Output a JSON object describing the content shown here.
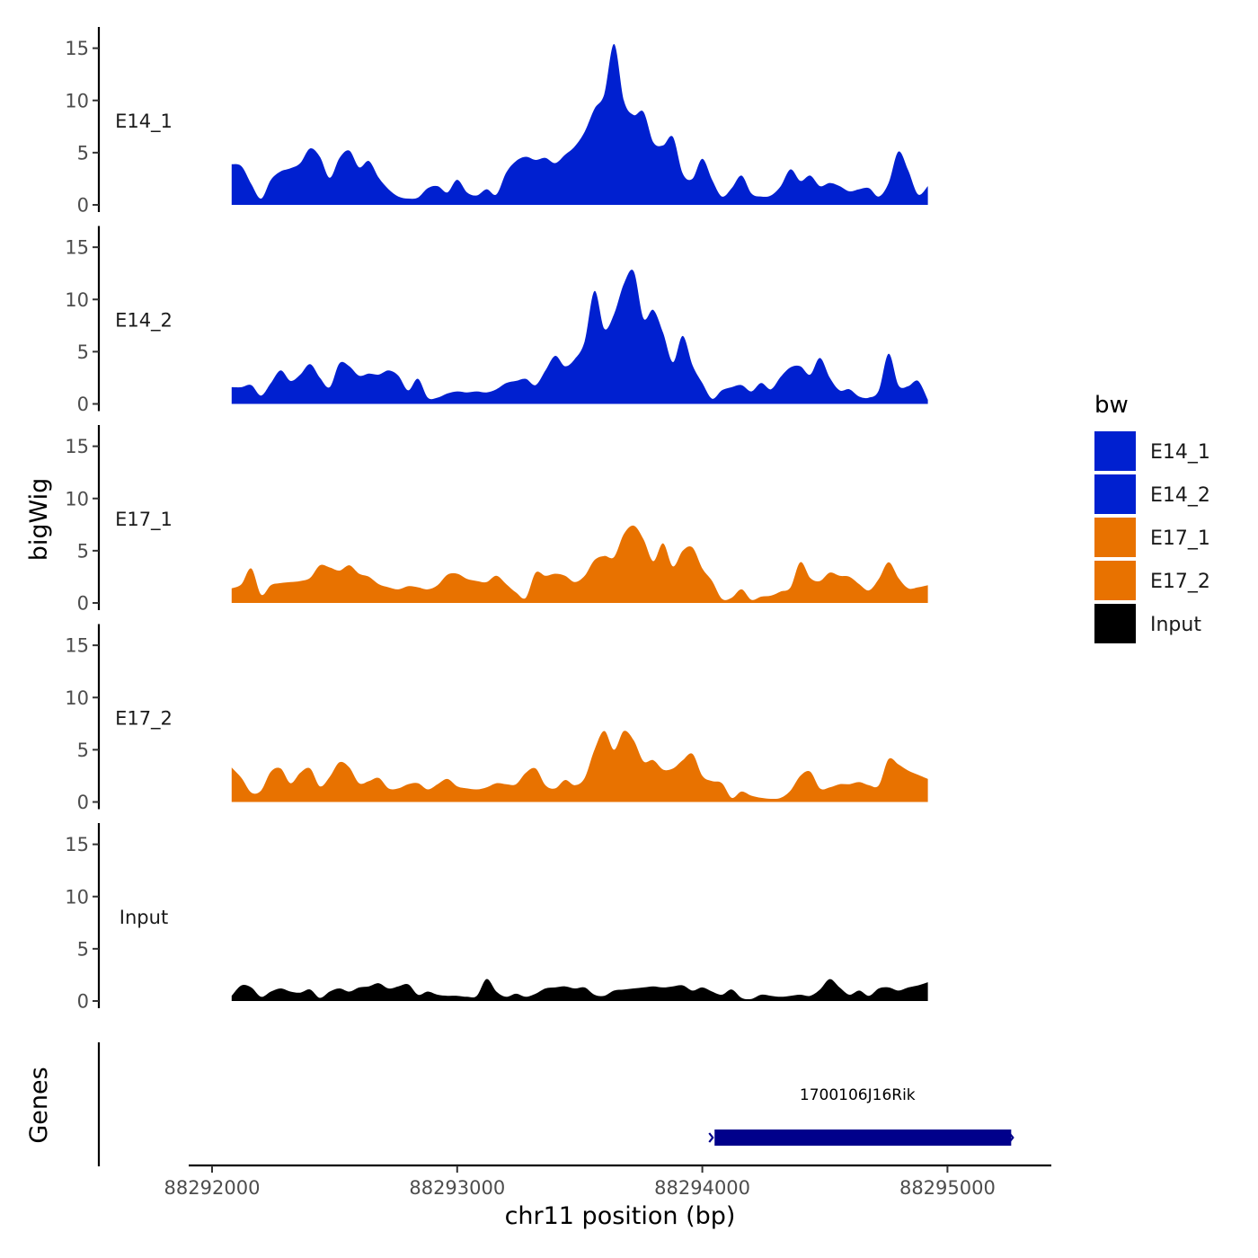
{
  "chart_data": {
    "type": "area",
    "title": "",
    "xlabel": "chr11 position (bp)",
    "ylabel": "bigWig",
    "genes_label": "Genes",
    "xlim": [
      88291900,
      88295450
    ],
    "ylim": [
      0,
      16
    ],
    "x_ticks": [
      {
        "value": 88292000,
        "label": "88292000"
      },
      {
        "value": 88293000,
        "label": "88293000"
      },
      {
        "value": 88294000,
        "label": "88294000"
      },
      {
        "value": 88295000,
        "label": "88295000"
      }
    ],
    "y_ticks": [
      {
        "value": 0,
        "label": "0"
      },
      {
        "value": 5,
        "label": "5"
      },
      {
        "value": 10,
        "label": "10"
      },
      {
        "value": 15,
        "label": "15"
      }
    ],
    "x_start": 88292080,
    "x_step": 40,
    "series": [
      {
        "name": "E14_1",
        "color": "#0020D0",
        "values": [
          3.9,
          3.7,
          2.0,
          0.6,
          2.4,
          3.2,
          3.5,
          4.0,
          5.4,
          4.6,
          2.6,
          4.5,
          5.2,
          3.6,
          4.2,
          2.6,
          1.5,
          0.8,
          0.6,
          0.7,
          1.6,
          1.8,
          1.2,
          2.4,
          1.2,
          0.9,
          1.5,
          1.0,
          3.1,
          4.2,
          4.6,
          4.3,
          4.5,
          4.0,
          4.8,
          5.6,
          7.0,
          9.2,
          10.6,
          15.4,
          10.0,
          8.6,
          8.9,
          6.0,
          5.7,
          6.5,
          3.0,
          2.5,
          4.4,
          2.4,
          0.8,
          1.6,
          2.8,
          1.1,
          0.8,
          0.9,
          1.8,
          3.4,
          2.3,
          2.8,
          1.8,
          2.1,
          1.8,
          1.3,
          1.5,
          1.6,
          0.8,
          2.1,
          5.1,
          3.3,
          1.0,
          1.8
        ]
      },
      {
        "name": "E14_2",
        "color": "#0020D0",
        "values": [
          1.6,
          1.6,
          1.8,
          0.8,
          2.0,
          3.2,
          2.2,
          2.8,
          3.8,
          2.5,
          1.6,
          3.9,
          3.6,
          2.7,
          2.9,
          2.8,
          3.2,
          2.7,
          1.3,
          2.4,
          0.6,
          0.6,
          1.0,
          1.2,
          1.1,
          1.2,
          1.1,
          1.4,
          2.0,
          2.2,
          2.4,
          1.8,
          3.2,
          4.6,
          3.6,
          4.3,
          6.0,
          10.8,
          7.2,
          8.6,
          11.5,
          12.7,
          8.2,
          9.0,
          6.8,
          4.0,
          6.5,
          3.7,
          2.0,
          0.5,
          1.3,
          1.6,
          1.8,
          1.2,
          2.0,
          1.4,
          2.6,
          3.5,
          3.6,
          2.8,
          4.4,
          2.5,
          1.3,
          1.4,
          0.7,
          0.6,
          1.3,
          4.8,
          1.8,
          1.7,
          2.2,
          0.4
        ]
      },
      {
        "name": "E17_1",
        "color": "#E87200",
        "values": [
          1.4,
          1.8,
          3.3,
          0.8,
          1.7,
          1.9,
          2.0,
          2.1,
          2.4,
          3.6,
          3.4,
          3.1,
          3.6,
          2.8,
          2.5,
          1.8,
          1.5,
          1.3,
          1.6,
          1.5,
          1.3,
          1.7,
          2.7,
          2.8,
          2.3,
          2.1,
          2.0,
          2.6,
          1.8,
          1.0,
          0.5,
          2.9,
          2.6,
          2.8,
          2.6,
          2.0,
          2.6,
          4.1,
          4.5,
          4.4,
          6.6,
          7.4,
          6.1,
          4.0,
          5.7,
          3.5,
          5.0,
          5.3,
          3.3,
          2.1,
          0.4,
          0.5,
          1.3,
          0.3,
          0.6,
          0.7,
          1.1,
          1.5,
          3.9,
          2.4,
          2.1,
          2.9,
          2.6,
          2.5,
          1.8,
          1.2,
          2.3,
          3.9,
          2.4,
          1.4,
          1.5,
          1.7
        ]
      },
      {
        "name": "E17_2",
        "color": "#E87200",
        "values": [
          3.3,
          2.3,
          0.9,
          1.1,
          2.9,
          3.2,
          1.8,
          2.8,
          3.2,
          1.5,
          2.4,
          3.8,
          3.3,
          1.8,
          2.0,
          2.3,
          1.3,
          1.3,
          1.7,
          1.8,
          1.2,
          1.7,
          2.2,
          1.5,
          1.3,
          1.2,
          1.4,
          1.8,
          1.7,
          1.7,
          2.8,
          3.2,
          1.6,
          1.3,
          2.1,
          1.6,
          2.3,
          5.0,
          6.8,
          5.0,
          6.8,
          5.9,
          3.9,
          4.0,
          3.1,
          3.2,
          4.0,
          4.6,
          2.5,
          2.0,
          1.8,
          0.4,
          1.0,
          0.6,
          0.4,
          0.3,
          0.4,
          1.1,
          2.5,
          2.9,
          1.3,
          1.4,
          1.7,
          1.7,
          1.9,
          1.6,
          1.6,
          4.1,
          3.6,
          3.0,
          2.6,
          2.2
        ]
      },
      {
        "name": "Input",
        "color": "#000000",
        "values": [
          0.5,
          1.5,
          1.3,
          0.4,
          0.9,
          1.2,
          0.9,
          0.8,
          1.1,
          0.3,
          0.9,
          1.2,
          0.9,
          1.3,
          1.4,
          1.7,
          1.2,
          1.4,
          1.6,
          0.6,
          0.9,
          0.6,
          0.5,
          0.5,
          0.4,
          0.5,
          2.1,
          0.9,
          0.4,
          0.7,
          0.4,
          0.7,
          1.2,
          1.3,
          1.4,
          1.2,
          1.3,
          0.6,
          0.5,
          1.0,
          1.1,
          1.2,
          1.3,
          1.4,
          1.3,
          1.4,
          1.5,
          1.0,
          1.3,
          0.9,
          0.6,
          1.1,
          0.3,
          0.2,
          0.6,
          0.5,
          0.4,
          0.5,
          0.6,
          0.5,
          1.1,
          2.1,
          1.3,
          0.6,
          1.0,
          0.5,
          1.2,
          1.3,
          1.0,
          1.3,
          1.5,
          1.8
        ]
      }
    ],
    "legend": {
      "title": "bw",
      "position": "right",
      "entries": [
        {
          "label": "E14_1",
          "color": "#0020D0"
        },
        {
          "label": "E14_2",
          "color": "#0020D0"
        },
        {
          "label": "E17_1",
          "color": "#E87200"
        },
        {
          "label": "E17_2",
          "color": "#E87200"
        },
        {
          "label": "Input",
          "color": "#000000"
        }
      ]
    },
    "genes": [
      {
        "name": "1700106J16Rik",
        "start": 88294050,
        "end": 88295260,
        "strand": "-",
        "color": "#00008B"
      }
    ]
  }
}
